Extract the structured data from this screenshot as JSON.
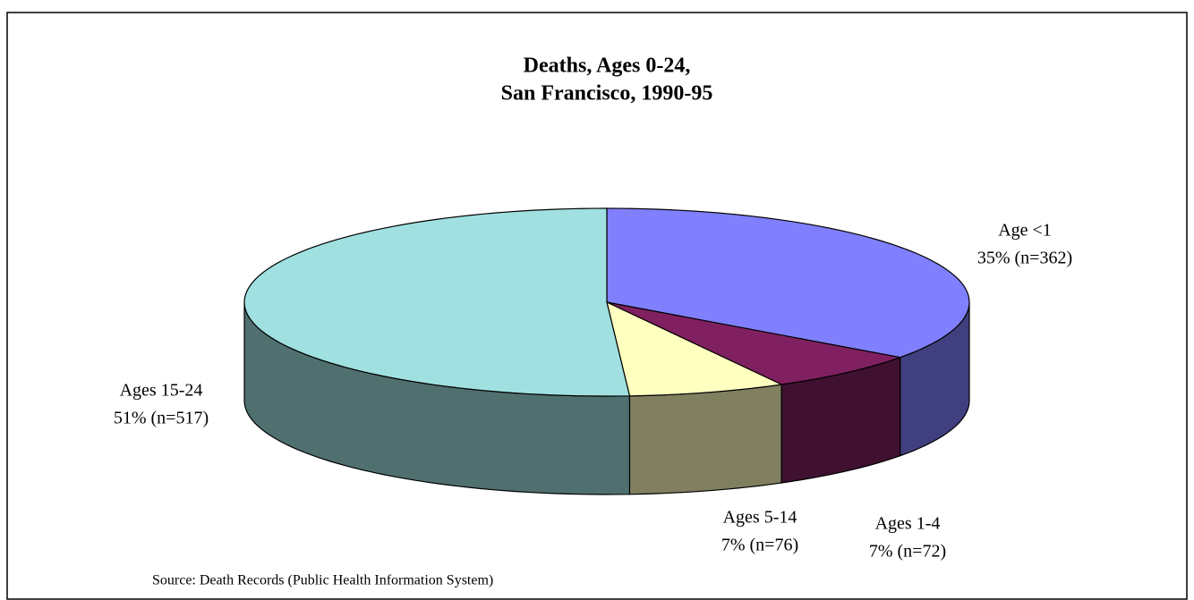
{
  "chart_data": {
    "type": "pie3d",
    "title": [
      "Deaths, Ages 0-24,",
      "San Francisco, 1990-95"
    ],
    "categories": [
      "Age <1",
      "Ages 1-4",
      "Ages 5-14",
      "Ages 15-24"
    ],
    "values": [
      35,
      7,
      7,
      51
    ],
    "value_labels": [
      "35% (n=362)",
      "7% (n=72)",
      "7% (n=76)",
      "51% (n=517)"
    ],
    "colors": [
      "#8080ff",
      "#802060",
      "#ffffc0",
      "#a0e0e0"
    ],
    "side_colors": [
      "#404080",
      "#401030",
      "#808060",
      "#507070"
    ],
    "source": "Source:  Death Records (Public Health Information System)"
  }
}
